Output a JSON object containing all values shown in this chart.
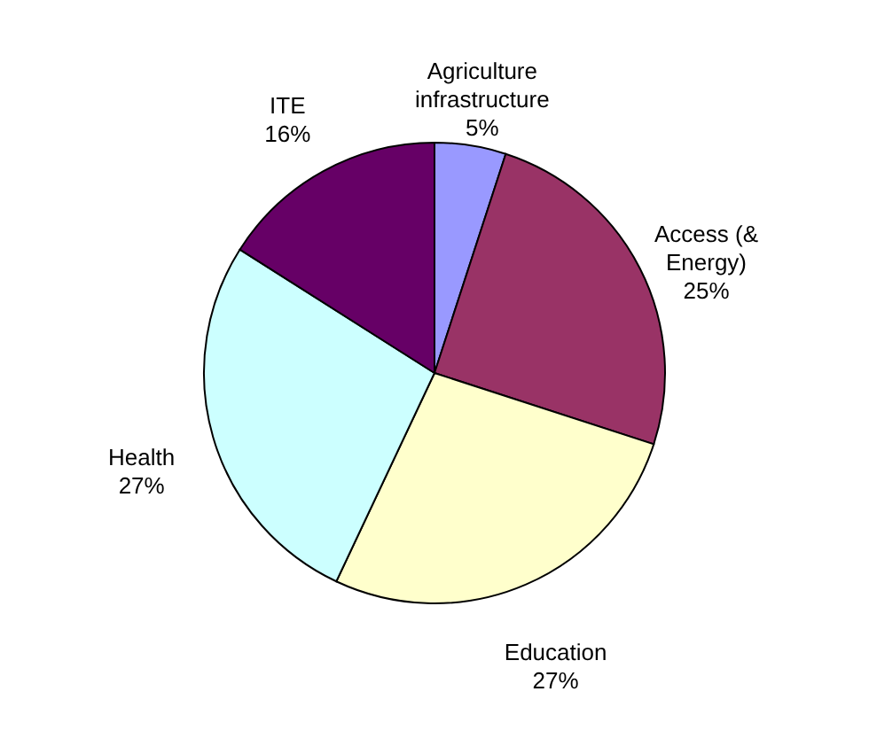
{
  "chart_data": {
    "type": "pie",
    "categories": [
      "Agriculture infrastructure",
      "Access (& Energy)",
      "Education",
      "Health",
      "ITE"
    ],
    "values": [
      5,
      25,
      27,
      27,
      16
    ],
    "value_labels": [
      "5%",
      "25%",
      "27%",
      "27%",
      "16%"
    ],
    "colors": [
      "#9999ff",
      "#993366",
      "#ffffcc",
      "#ccffff",
      "#660066"
    ]
  }
}
